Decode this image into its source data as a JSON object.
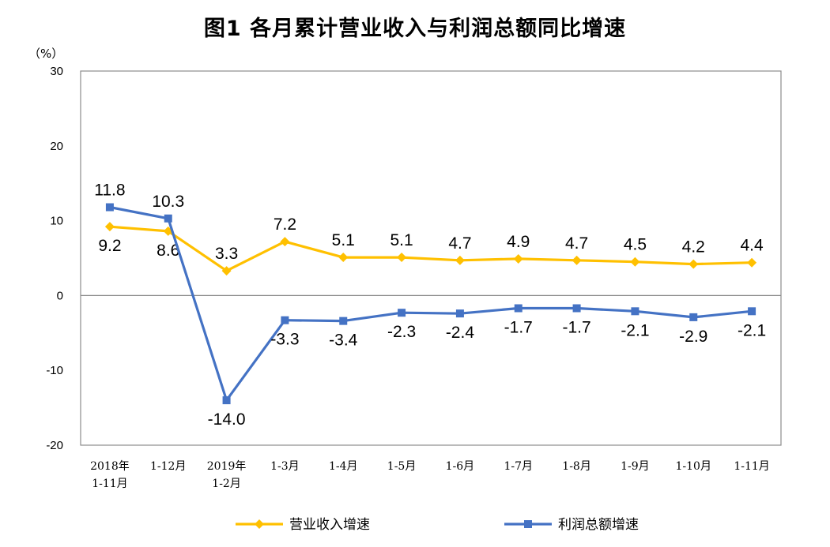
{
  "chart_data": {
    "type": "line",
    "title": "图1  各月累计营业收入与利润总额同比增速",
    "ylabel": "（%）",
    "xlabel": "",
    "ylim": [
      -20,
      30
    ],
    "yticks": [
      30,
      20,
      10,
      0,
      -10,
      -20
    ],
    "grid": false,
    "legend_position": "bottom",
    "categories": [
      [
        "2018年",
        "1-11月"
      ],
      [
        "1-12月"
      ],
      [
        "2019年",
        "1-2月"
      ],
      [
        "1-3月"
      ],
      [
        "1-4月"
      ],
      [
        "1-5月"
      ],
      [
        "1-6月"
      ],
      [
        "1-7月"
      ],
      [
        "1-8月"
      ],
      [
        "1-9月"
      ],
      [
        "1-10月"
      ],
      [
        "1-11月"
      ]
    ],
    "series": [
      {
        "name": "营业收入增速",
        "color": "#FFC000",
        "marker": "diamond",
        "values": [
          9.2,
          8.6,
          3.3,
          7.2,
          5.1,
          5.1,
          4.7,
          4.9,
          4.7,
          4.5,
          4.2,
          4.4
        ],
        "label_side": [
          "below",
          "below",
          "above",
          "above",
          "above",
          "above",
          "above",
          "above",
          "above",
          "above",
          "above",
          "above"
        ]
      },
      {
        "name": "利润总额增速",
        "color": "#4472C4",
        "marker": "square",
        "values": [
          11.8,
          10.3,
          -14.0,
          -3.3,
          -3.4,
          -2.3,
          -2.4,
          -1.7,
          -1.7,
          -2.1,
          -2.9,
          -2.1
        ],
        "label_side": [
          "above",
          "above",
          "below",
          "below",
          "below",
          "below",
          "below",
          "below",
          "below",
          "below",
          "below",
          "below"
        ]
      }
    ]
  }
}
